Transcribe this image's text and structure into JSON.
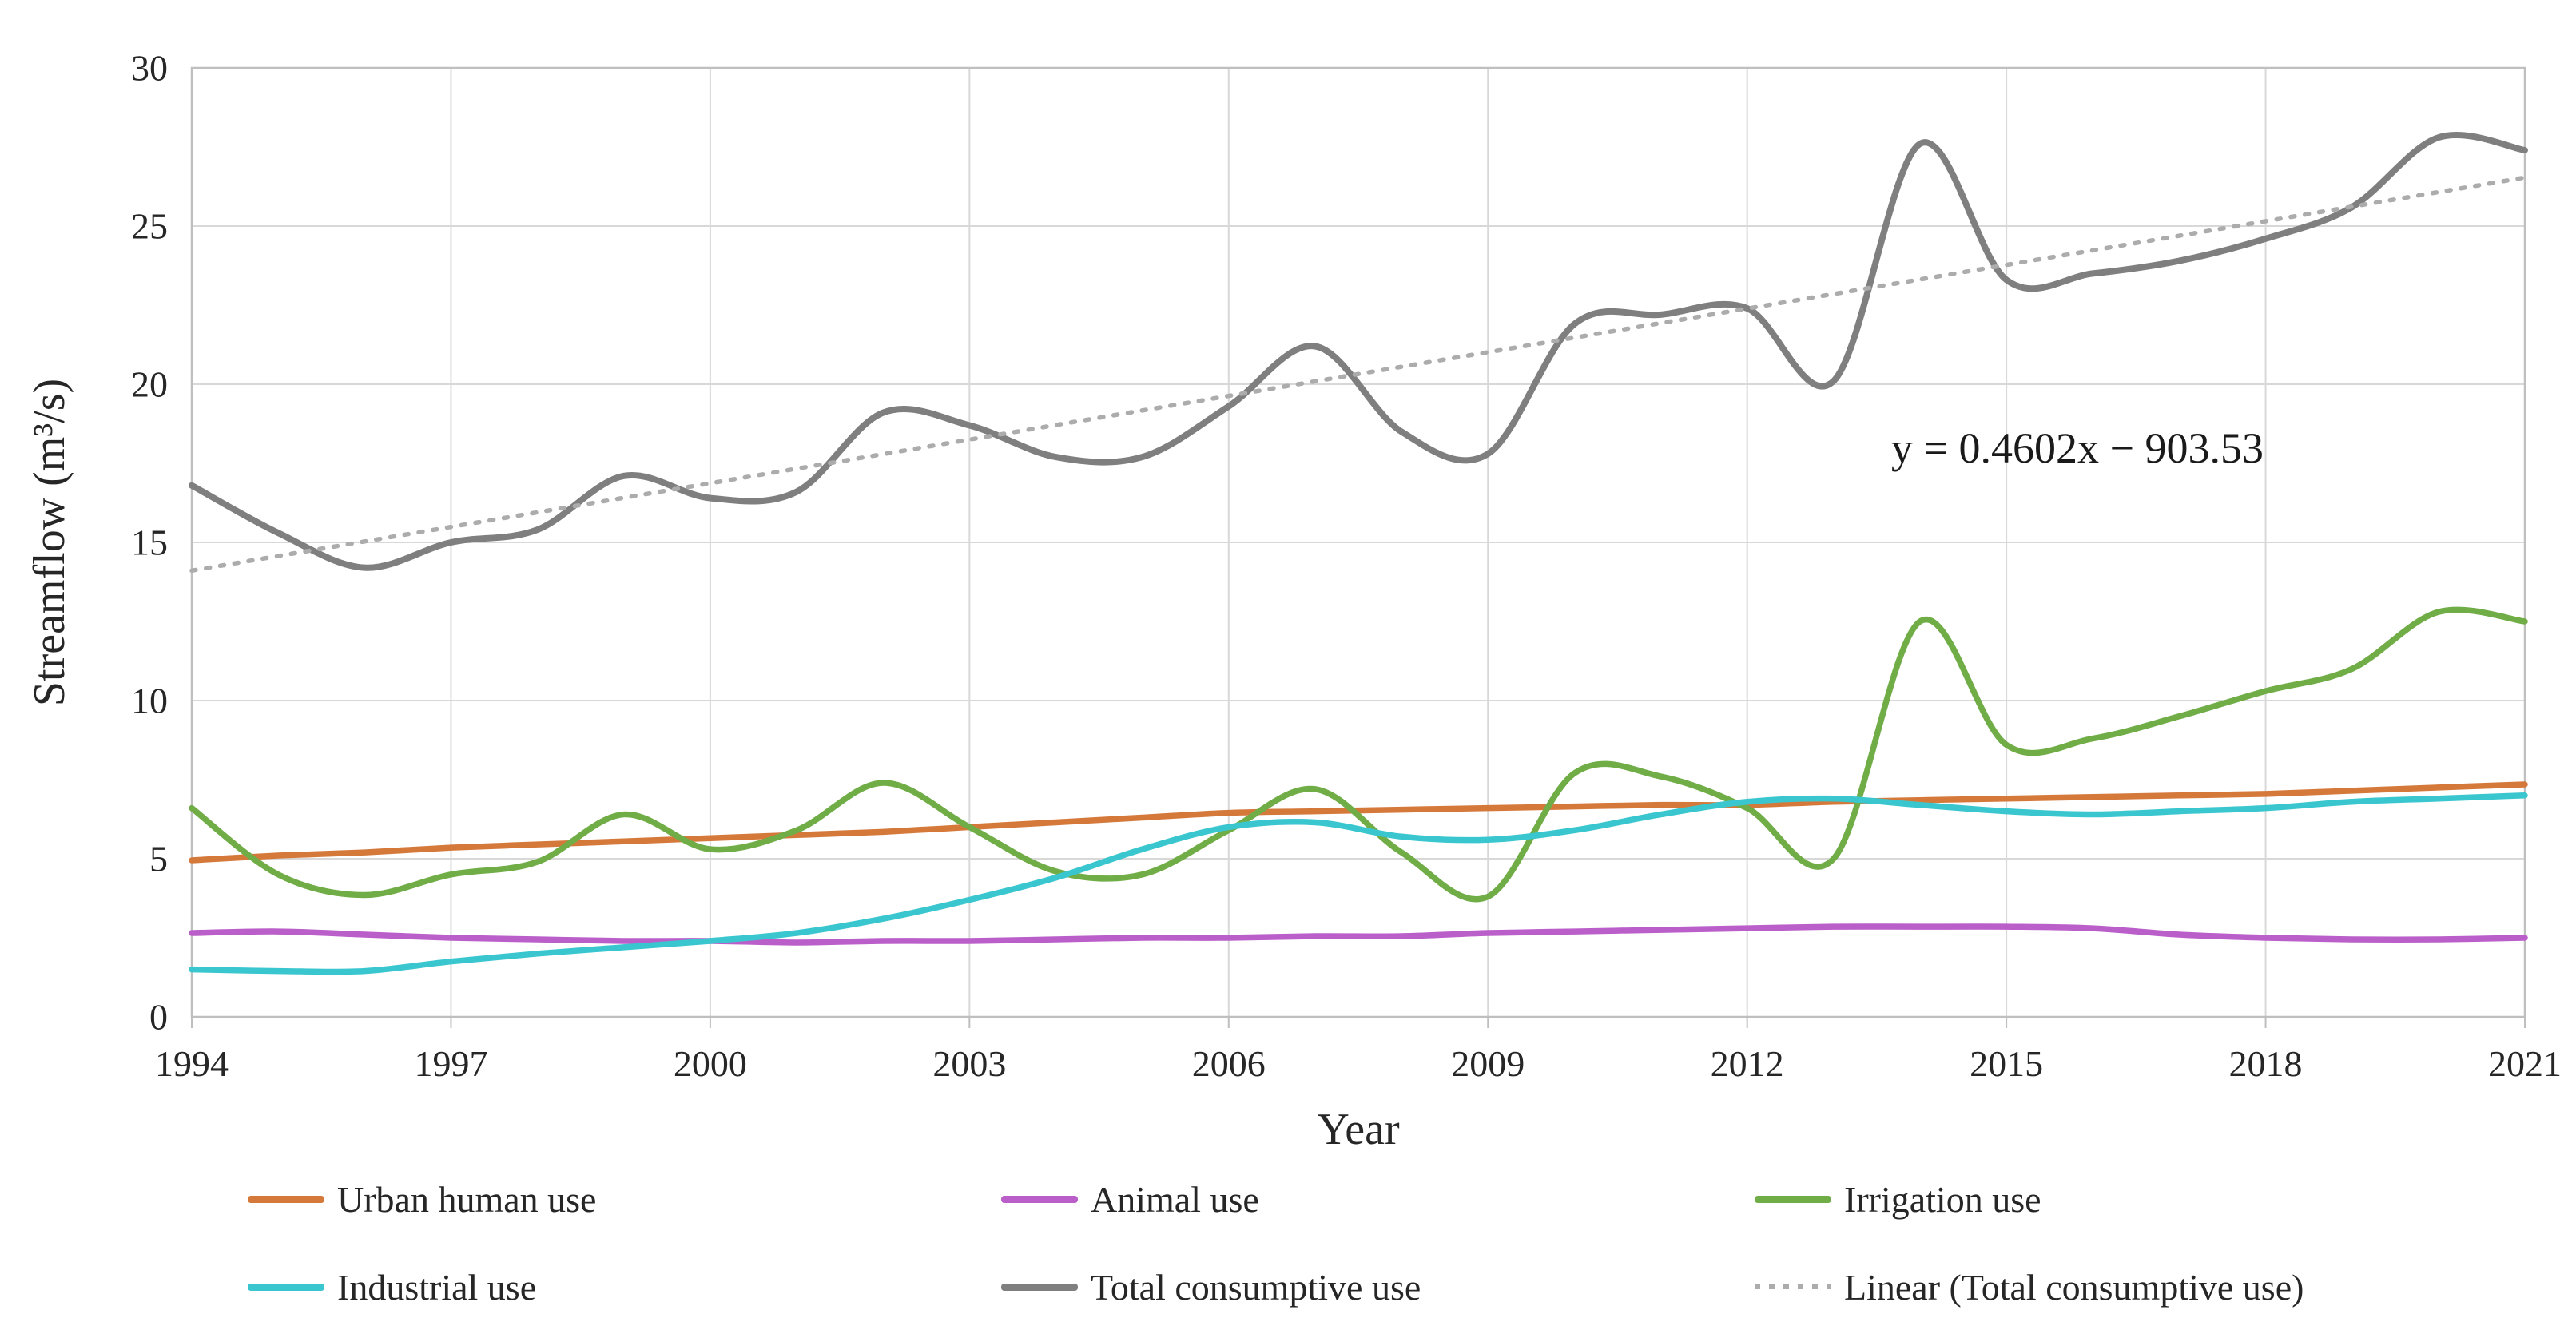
{
  "chart_data": {
    "type": "line",
    "title": "",
    "xlabel": "Year",
    "ylabel": "Streamflow (m³/s)",
    "ylim": [
      0,
      30
    ],
    "xlim": [
      1994,
      2021
    ],
    "y_ticks": [
      0,
      5,
      10,
      15,
      20,
      25,
      30
    ],
    "x_ticks": [
      1994,
      1997,
      2000,
      2003,
      2006,
      2009,
      2012,
      2015,
      2018,
      2021
    ],
    "grid": true,
    "legend_position": "bottom",
    "line_style": "smooth",
    "x": [
      1994,
      1995,
      1996,
      1997,
      1998,
      1999,
      2000,
      2001,
      2002,
      2003,
      2004,
      2005,
      2006,
      2007,
      2008,
      2009,
      2010,
      2011,
      2012,
      2013,
      2014,
      2015,
      2016,
      2017,
      2018,
      2019,
      2020,
      2021
    ],
    "series": [
      {
        "key": "urban",
        "name": "Urban human use",
        "color": "#D5793B",
        "values": [
          4.95,
          5.1,
          5.2,
          5.35,
          5.45,
          5.55,
          5.65,
          5.75,
          5.85,
          6.0,
          6.15,
          6.3,
          6.45,
          6.5,
          6.55,
          6.6,
          6.65,
          6.7,
          6.7,
          6.8,
          6.85,
          6.9,
          6.95,
          7.0,
          7.05,
          7.15,
          7.25,
          7.35
        ]
      },
      {
        "key": "animal",
        "name": "Animal use",
        "color": "#BA5EC9",
        "values": [
          2.65,
          2.7,
          2.6,
          2.5,
          2.45,
          2.4,
          2.4,
          2.35,
          2.4,
          2.4,
          2.45,
          2.5,
          2.5,
          2.55,
          2.55,
          2.65,
          2.7,
          2.75,
          2.8,
          2.85,
          2.85,
          2.85,
          2.8,
          2.6,
          2.5,
          2.45,
          2.45,
          2.5
        ]
      },
      {
        "key": "irrigation",
        "name": "Irrigation use",
        "color": "#70AD47",
        "values": [
          6.6,
          4.5,
          3.85,
          4.5,
          4.9,
          6.4,
          5.3,
          5.9,
          7.4,
          6.0,
          4.6,
          4.5,
          5.9,
          7.2,
          5.2,
          3.8,
          7.7,
          7.6,
          6.6,
          5.0,
          12.5,
          8.6,
          8.8,
          9.5,
          10.3,
          11.0,
          12.8,
          12.5
        ]
      },
      {
        "key": "industrial",
        "name": "Industrial use",
        "color": "#3AC6CF",
        "values": [
          1.5,
          1.45,
          1.45,
          1.75,
          2.0,
          2.2,
          2.4,
          2.65,
          3.1,
          3.7,
          4.4,
          5.3,
          6.0,
          6.15,
          5.7,
          5.6,
          5.9,
          6.4,
          6.8,
          6.9,
          6.7,
          6.5,
          6.4,
          6.5,
          6.6,
          6.8,
          6.9,
          7.0
        ]
      },
      {
        "key": "total",
        "name": "Total consumptive use",
        "color": "#7F7F7F",
        "values": [
          16.8,
          15.3,
          14.2,
          15.0,
          15.4,
          17.1,
          16.4,
          16.6,
          19.1,
          18.7,
          17.7,
          17.7,
          19.3,
          21.2,
          18.5,
          17.8,
          21.9,
          22.2,
          22.4,
          20.1,
          27.6,
          23.3,
          23.5,
          23.9,
          24.6,
          25.6,
          27.8,
          27.4
        ]
      }
    ],
    "trendline": {
      "key": "linear",
      "name": "Linear (Total consumptive use)",
      "color": "#ACACAC",
      "style": "dotted",
      "slope": 0.4602,
      "intercept": -903.53,
      "equation": "y = 0.4602x − 903.53"
    }
  },
  "annotation": {
    "text": "y = 0.4602x − 903.53"
  },
  "axes": {
    "y_title": "Streamflow (m³/s)",
    "x_title": "Year"
  },
  "legend": {
    "items": [
      {
        "label": "Urban human use",
        "series": "urban",
        "style": "solid"
      },
      {
        "label": "Animal use",
        "series": "animal",
        "style": "solid"
      },
      {
        "label": "Irrigation use",
        "series": "irrigation",
        "style": "solid"
      },
      {
        "label": "Industrial use",
        "series": "industrial",
        "style": "solid"
      },
      {
        "label": "Total consumptive use",
        "series": "total",
        "style": "solid"
      },
      {
        "label": "Linear (Total consumptive use)",
        "series": "linear",
        "style": "dotted"
      }
    ]
  },
  "colors": {
    "gridline": "#D8D8D8",
    "plot_border": "#BFBFBF",
    "text": "#262626"
  }
}
